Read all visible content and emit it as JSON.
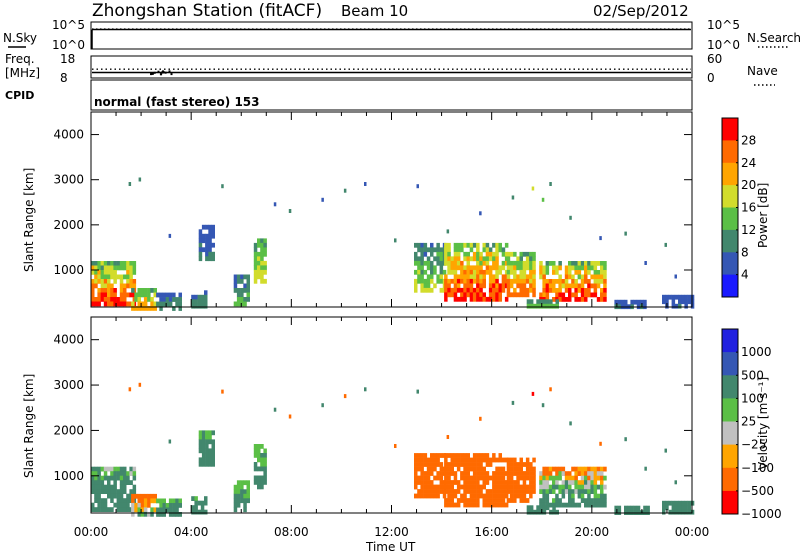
{
  "header": {
    "station_title": "Zhongshan Station (fitACF)",
    "beam_label": "Beam 10",
    "date_label": "02/Sep/2012"
  },
  "noise_panel": {
    "left_label": "N.Sky",
    "right_label": "N.Search",
    "left_ticks": [
      "10^5",
      "10^0"
    ],
    "right_ticks": [
      "10^5",
      "10^0"
    ],
    "ylim_log10": [
      0,
      5
    ],
    "sky_level_log10": 3.6,
    "search_level_log10": 3.7
  },
  "freq_panel": {
    "left_label_line1": "Freq.",
    "left_label_line2": "[MHz]",
    "right_label": "Nave",
    "left_ticks": [
      "18",
      "8"
    ],
    "right_ticks": [
      "60",
      "0"
    ],
    "freq_ylim": [
      8,
      18
    ],
    "nave_ylim": [
      0,
      60
    ],
    "freq_value": 10.5,
    "nave_value": 24,
    "cpid_label": "CPID",
    "mode_text": "normal (fast stereo) 153"
  },
  "x_axis": {
    "label": "Time UT",
    "ticks": [
      "00:00",
      "04:00",
      "08:00",
      "12:00",
      "16:00",
      "20:00",
      "00:00"
    ],
    "tick_hours": [
      0,
      4,
      8,
      12,
      16,
      20,
      24
    ],
    "range_hours": [
      0,
      24
    ]
  },
  "range_axis": {
    "label": "Slant Range [km]",
    "ticks": [
      "1000",
      "2000",
      "3000",
      "4000"
    ],
    "tick_values": [
      1000,
      2000,
      3000,
      4000
    ],
    "ylim_km": [
      180,
      4500
    ]
  },
  "chart_data": [
    {
      "type": "heatmap",
      "name": "power",
      "colorbar_label": "Power [dB]",
      "colorbar_ticks": [
        "4",
        "8",
        "12",
        "16",
        "20",
        "24",
        "28"
      ],
      "value_range": [
        0,
        30
      ],
      "colors": [
        "#1a1aff",
        "#3557b4",
        "#42876d",
        "#5bbf46",
        "#d2dc2c",
        "#ffa500",
        "#ff6a00",
        "#ff0000"
      ],
      "x_hours": [
        0,
        24
      ],
      "y_km": [
        180,
        4500
      ],
      "patches": [
        {
          "t0": 0.0,
          "t1": 1.7,
          "r0": 300,
          "r1": 1200,
          "v": [
            4,
            28
          ]
        },
        {
          "t0": 1.6,
          "t1": 2.6,
          "r0": 180,
          "r1": 600,
          "v": [
            6,
            22
          ]
        },
        {
          "t0": 2.6,
          "t1": 3.6,
          "r0": 200,
          "r1": 500,
          "v": [
            4,
            10
          ]
        },
        {
          "t0": 4.0,
          "t1": 4.6,
          "r0": 250,
          "r1": 550,
          "v": [
            4,
            10
          ]
        },
        {
          "t0": 4.3,
          "t1": 4.9,
          "r0": 1300,
          "r1": 2000,
          "v": [
            4,
            8
          ]
        },
        {
          "t0": 5.7,
          "t1": 6.3,
          "r0": 300,
          "r1": 900,
          "v": [
            4,
            12
          ]
        },
        {
          "t0": 6.5,
          "t1": 7.0,
          "r0": 800,
          "r1": 1700,
          "v": [
            6,
            18
          ]
        },
        {
          "t0": 12.9,
          "t1": 14.1,
          "r0": 600,
          "r1": 1600,
          "v": [
            4,
            16
          ]
        },
        {
          "t0": 14.1,
          "t1": 16.6,
          "r0": 400,
          "r1": 1600,
          "v": [
            6,
            28
          ]
        },
        {
          "t0": 16.6,
          "t1": 17.7,
          "r0": 500,
          "r1": 1400,
          "v": [
            6,
            24
          ]
        },
        {
          "t0": 17.9,
          "t1": 20.5,
          "r0": 400,
          "r1": 1200,
          "v": [
            6,
            28
          ]
        },
        {
          "t0": 17.4,
          "t1": 18.6,
          "r0": 180,
          "r1": 350,
          "v": [
            8,
            14
          ]
        },
        {
          "t0": 20.9,
          "t1": 22.3,
          "r0": 200,
          "r1": 340,
          "v": [
            4,
            8
          ]
        },
        {
          "t0": 22.8,
          "t1": 24.0,
          "r0": 180,
          "r1": 450,
          "v": [
            4,
            8
          ]
        }
      ],
      "scatter": [
        {
          "t": 1.5,
          "r": 2950,
          "v": 8
        },
        {
          "t": 1.9,
          "r": 3050,
          "v": 8
        },
        {
          "t": 3.1,
          "r": 1800,
          "v": 6
        },
        {
          "t": 5.2,
          "r": 2900,
          "v": 8
        },
        {
          "t": 7.3,
          "r": 2500,
          "v": 6
        },
        {
          "t": 7.9,
          "r": 2350,
          "v": 8
        },
        {
          "t": 9.2,
          "r": 2600,
          "v": 6
        },
        {
          "t": 10.1,
          "r": 2800,
          "v": 8
        },
        {
          "t": 10.9,
          "r": 2950,
          "v": 6
        },
        {
          "t": 12.1,
          "r": 1700,
          "v": 8
        },
        {
          "t": 13.0,
          "r": 2900,
          "v": 6
        },
        {
          "t": 14.2,
          "r": 1900,
          "v": 8
        },
        {
          "t": 15.5,
          "r": 2300,
          "v": 6
        },
        {
          "t": 16.8,
          "r": 2650,
          "v": 8
        },
        {
          "t": 17.6,
          "r": 2850,
          "v": 18
        },
        {
          "t": 18.0,
          "r": 2600,
          "v": 12
        },
        {
          "t": 18.3,
          "r": 2950,
          "v": 8
        },
        {
          "t": 19.1,
          "r": 2200,
          "v": 8
        },
        {
          "t": 20.3,
          "r": 1750,
          "v": 6
        },
        {
          "t": 21.3,
          "r": 1850,
          "v": 8
        },
        {
          "t": 22.1,
          "r": 1200,
          "v": 6
        },
        {
          "t": 22.9,
          "r": 1600,
          "v": 8
        },
        {
          "t": 23.3,
          "r": 900,
          "v": 6
        }
      ]
    },
    {
      "type": "heatmap",
      "name": "velocity",
      "colorbar_label": "Velocity [m s⁻¹]",
      "colorbar_ticks": [
        "1000",
        "500",
        "100",
        "25",
        "−25",
        "−100",
        "−500",
        "−1000"
      ],
      "value_range": [
        -1000,
        1000
      ],
      "colors": [
        "#2020e0",
        "#3557b4",
        "#42876d",
        "#5bbf46",
        "#c0c0c0",
        "#ffa500",
        "#ff6a00",
        "#ff0000"
      ],
      "x_hours": [
        0,
        24
      ],
      "y_km": [
        180,
        4500
      ],
      "patches": [
        {
          "t0": 0.0,
          "t1": 1.7,
          "r0": 300,
          "r1": 1200,
          "v": [
            -100,
            400
          ]
        },
        {
          "t0": 1.6,
          "t1": 2.6,
          "r0": 180,
          "r1": 600,
          "v": [
            -400,
            100
          ]
        },
        {
          "t0": 2.6,
          "t1": 3.6,
          "r0": 200,
          "r1": 500,
          "v": [
            20,
            200
          ]
        },
        {
          "t0": 4.0,
          "t1": 4.6,
          "r0": 250,
          "r1": 550,
          "v": [
            50,
            300
          ]
        },
        {
          "t0": 4.3,
          "t1": 4.9,
          "r0": 1300,
          "r1": 2000,
          "v": [
            30,
            200
          ]
        },
        {
          "t0": 5.7,
          "t1": 6.3,
          "r0": 300,
          "r1": 900,
          "v": [
            -50,
            200
          ]
        },
        {
          "t0": 6.5,
          "t1": 7.0,
          "r0": 800,
          "r1": 1700,
          "v": [
            20,
            150
          ]
        },
        {
          "t0": 12.9,
          "t1": 14.1,
          "r0": 600,
          "r1": 1500,
          "v": [
            -500,
            -150
          ]
        },
        {
          "t0": 14.1,
          "t1": 16.6,
          "r0": 400,
          "r1": 1500,
          "v": [
            -500,
            -150
          ]
        },
        {
          "t0": 16.6,
          "t1": 17.7,
          "r0": 500,
          "r1": 1400,
          "v": [
            -400,
            -120
          ]
        },
        {
          "t0": 17.9,
          "t1": 20.5,
          "r0": 400,
          "r1": 1200,
          "v": [
            -300,
            250
          ]
        },
        {
          "t0": 17.4,
          "t1": 18.6,
          "r0": 180,
          "r1": 350,
          "v": [
            100,
            300
          ]
        },
        {
          "t0": 20.9,
          "t1": 22.3,
          "r0": 200,
          "r1": 340,
          "v": [
            100,
            400
          ]
        },
        {
          "t0": 22.8,
          "t1": 24.0,
          "r0": 180,
          "r1": 450,
          "v": [
            100,
            400
          ]
        }
      ],
      "scatter": [
        {
          "t": 1.5,
          "r": 2950,
          "v": -200
        },
        {
          "t": 1.9,
          "r": 3050,
          "v": -150
        },
        {
          "t": 3.1,
          "r": 1800,
          "v": 150
        },
        {
          "t": 5.2,
          "r": 2900,
          "v": -200
        },
        {
          "t": 7.3,
          "r": 2500,
          "v": 150
        },
        {
          "t": 7.9,
          "r": 2350,
          "v": -150
        },
        {
          "t": 9.2,
          "r": 2600,
          "v": 200
        },
        {
          "t": 10.1,
          "r": 2800,
          "v": -150
        },
        {
          "t": 10.9,
          "r": 2950,
          "v": 150
        },
        {
          "t": 12.1,
          "r": 1700,
          "v": -200
        },
        {
          "t": 13.0,
          "r": 2900,
          "v": 150
        },
        {
          "t": 14.2,
          "r": 1900,
          "v": -150
        },
        {
          "t": 15.5,
          "r": 2300,
          "v": -200
        },
        {
          "t": 16.8,
          "r": 2650,
          "v": 150
        },
        {
          "t": 17.6,
          "r": 2850,
          "v": -600
        },
        {
          "t": 18.0,
          "r": 2600,
          "v": 150
        },
        {
          "t": 18.3,
          "r": 2950,
          "v": -150
        },
        {
          "t": 19.1,
          "r": 2200,
          "v": 200
        },
        {
          "t": 20.3,
          "r": 1750,
          "v": -150
        },
        {
          "t": 21.3,
          "r": 1850,
          "v": 150
        },
        {
          "t": 22.1,
          "r": 1200,
          "v": 200
        },
        {
          "t": 22.9,
          "r": 1600,
          "v": 150
        },
        {
          "t": 23.3,
          "r": 900,
          "v": 150
        }
      ]
    }
  ]
}
